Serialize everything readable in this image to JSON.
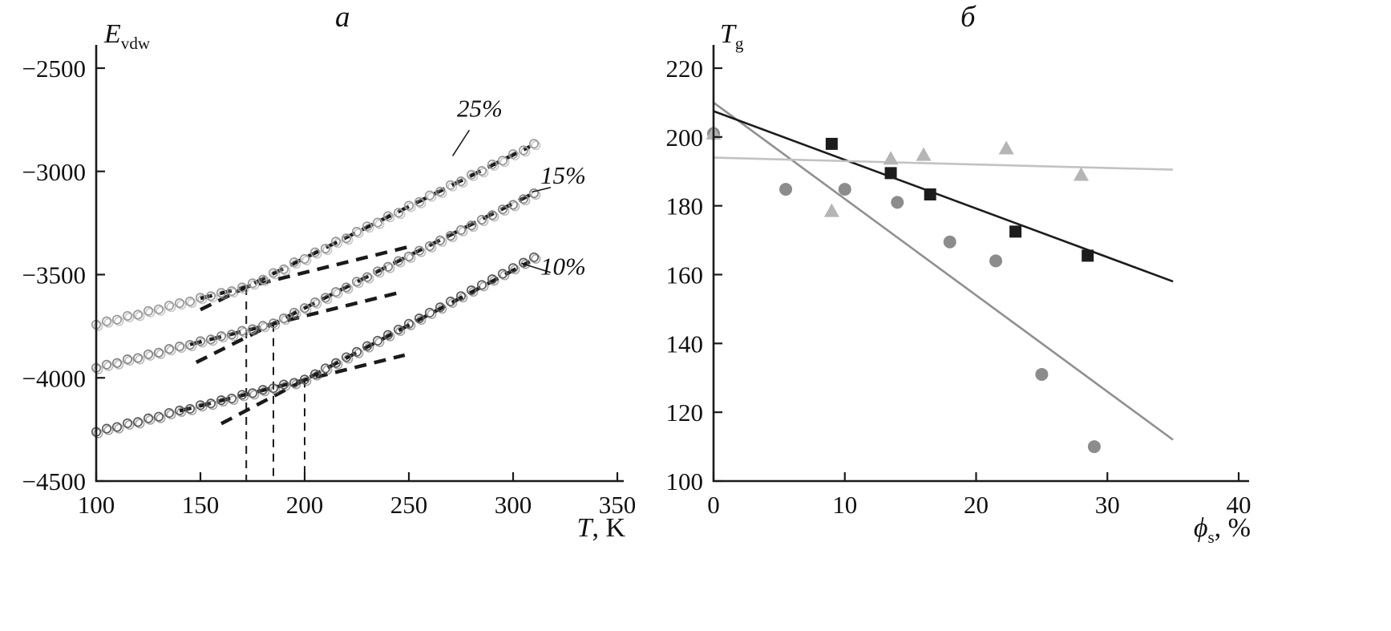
{
  "figure": {
    "background": "#ffffff",
    "panels": [
      {
        "title": "a",
        "y_axis_label": {
          "main": "E",
          "sub": "vdw"
        },
        "x_axis_label": {
          "main": "T",
          "rest": ", K"
        }
      },
      {
        "title": "б",
        "y_axis_label": {
          "main": "T",
          "sub": "g"
        },
        "x_axis_label": {
          "main": "ϕ",
          "sub": "s",
          "rest": ", %"
        }
      }
    ]
  },
  "chart_data": [
    {
      "type": "scatter",
      "panel": "a",
      "title": "a",
      "xlabel": "T, K",
      "ylabel": "E_vdw",
      "xlim": [
        100,
        350
      ],
      "ylim": [
        -4500,
        -2500
      ],
      "grid": false,
      "x_ticks": {
        "values": [
          100,
          150,
          200,
          250,
          300,
          350
        ],
        "labels": [
          "100",
          "150",
          "200",
          "250",
          "300",
          "350"
        ]
      },
      "y_ticks": {
        "values": [
          -2500,
          -3000,
          -3500,
          -4000,
          -4500
        ],
        "labels": [
          "−2500",
          "−3000",
          "−3500",
          "−4000",
          "−4500"
        ]
      },
      "x_start": 100,
      "x_step": 5,
      "series": [
        {
          "name": "25%",
          "marker": "open-circle",
          "color": "#9a9a9a",
          "values": [
            -3742,
            -3726,
            -3718,
            -3700,
            -3694,
            -3676,
            -3668,
            -3650,
            -3638,
            -3630,
            -3612,
            -3604,
            -3588,
            -3580,
            -3562,
            -3542,
            -3524,
            -3492,
            -3474,
            -3440,
            -3424,
            -3392,
            -3374,
            -3340,
            -3324,
            -3292,
            -3266,
            -3248,
            -3216,
            -3200,
            -3166,
            -3148,
            -3116,
            -3098,
            -3066,
            -3048,
            -3016,
            -2998,
            -2966,
            -2948,
            -2916,
            -2898,
            -2866
          ]
        },
        {
          "name": "15%",
          "marker": "open-circle",
          "color": "#868686",
          "values": [
            -3952,
            -3936,
            -3928,
            -3910,
            -3904,
            -3886,
            -3878,
            -3860,
            -3848,
            -3840,
            -3822,
            -3814,
            -3798,
            -3790,
            -3772,
            -3764,
            -3748,
            -3736,
            -3712,
            -3684,
            -3662,
            -3634,
            -3612,
            -3584,
            -3562,
            -3534,
            -3512,
            -3484,
            -3462,
            -3434,
            -3412,
            -3384,
            -3362,
            -3334,
            -3312,
            -3284,
            -3262,
            -3234,
            -3212,
            -3184,
            -3162,
            -3134,
            -3106
          ]
        },
        {
          "name": "10%",
          "marker": "open-circle",
          "color": "#5c5c5c",
          "values": [
            -4262,
            -4246,
            -4238,
            -4220,
            -4214,
            -4196,
            -4188,
            -4170,
            -4158,
            -4150,
            -4132,
            -4124,
            -4108,
            -4100,
            -4082,
            -4074,
            -4058,
            -4050,
            -4032,
            -4024,
            -4008,
            -3982,
            -3954,
            -3928,
            -3900,
            -3874,
            -3846,
            -3820,
            -3792,
            -3766,
            -3738,
            -3712,
            -3684,
            -3658,
            -3630,
            -3604,
            -3576,
            -3550,
            -3522,
            -3496,
            -3468,
            -3442,
            -3416
          ]
        }
      ],
      "fit_lines": [
        {
          "series": "25%",
          "dashed": true,
          "color": "#1a1a1a",
          "from": [
            150,
            -3670
          ],
          "to": [
            308,
            -2880
          ]
        },
        {
          "series": "25%",
          "dashed": true,
          "color": "#1a1a1a",
          "from": [
            150,
            -3615
          ],
          "to": [
            250,
            -3365
          ]
        },
        {
          "series": "15%",
          "dashed": true,
          "color": "#1a1a1a",
          "from": [
            148,
            -3925
          ],
          "to": [
            308,
            -3115
          ]
        },
        {
          "series": "15%",
          "dashed": true,
          "color": "#1a1a1a",
          "from": [
            145,
            -3838
          ],
          "to": [
            245,
            -3588
          ]
        },
        {
          "series": "10%",
          "dashed": true,
          "color": "#1a1a1a",
          "from": [
            160,
            -4222
          ],
          "to": [
            308,
            -3437
          ]
        },
        {
          "series": "10%",
          "dashed": true,
          "color": "#1a1a1a",
          "from": [
            140,
            -4160
          ],
          "to": [
            248,
            -3890
          ]
        }
      ],
      "transition_lines": [
        {
          "x": 172,
          "y_top": -3560
        },
        {
          "x": 185,
          "y_top": -3738
        },
        {
          "x": 200,
          "y_top": -4008
        }
      ],
      "annotations": [
        {
          "text": "25%",
          "x": 284,
          "y": -2735,
          "leader": {
            "from": [
              279,
              -2800
            ],
            "to": [
              271,
              -2925
            ]
          }
        },
        {
          "text": "15%",
          "x": 324,
          "y": -3060,
          "leader": {
            "from": [
              318,
              -3078
            ],
            "to": [
              309,
              -3100
            ]
          }
        },
        {
          "text": "10%",
          "x": 324,
          "y": -3500,
          "leader": {
            "from": [
              318,
              -3490
            ],
            "to": [
              304,
              -3445
            ]
          }
        }
      ]
    },
    {
      "type": "scatter",
      "panel": "б",
      "title": "б",
      "xlabel": "ϕs, %",
      "ylabel": "Tg",
      "xlim": [
        0,
        40
      ],
      "ylim": [
        100,
        220
      ],
      "grid": false,
      "x_ticks": {
        "values": [
          0,
          10,
          20,
          30,
          40
        ],
        "labels": [
          "0",
          "10",
          "20",
          "30",
          "40"
        ]
      },
      "y_ticks": {
        "values": [
          100,
          120,
          140,
          160,
          180,
          200,
          220
        ],
        "labels": [
          "100",
          "120",
          "140",
          "160",
          "180",
          "200",
          "220"
        ]
      },
      "series": [
        {
          "name": "circles",
          "marker": "circle",
          "color": "#8c8c8c",
          "points": [
            [
              0,
              201
            ],
            [
              5.5,
              184.8
            ],
            [
              10,
              184.8
            ],
            [
              14,
              181
            ],
            [
              18,
              169.5
            ],
            [
              21.5,
              164
            ],
            [
              25,
              131
            ],
            [
              29,
              110
            ]
          ]
        },
        {
          "name": "triangles",
          "marker": "triangle",
          "color": "#b5b5b5",
          "points": [
            [
              0,
              201
            ],
            [
              9,
              178.5
            ],
            [
              13.5,
              193.7
            ],
            [
              16,
              194.8
            ],
            [
              22.3,
              196.7
            ],
            [
              28,
              189
            ]
          ]
        },
        {
          "name": "squares",
          "marker": "square",
          "color": "#1c1c1c",
          "points": [
            [
              9,
              198
            ],
            [
              13.5,
              189.5
            ],
            [
              16.5,
              183.3
            ],
            [
              23,
              172.5
            ],
            [
              28.5,
              165.5
            ]
          ]
        }
      ],
      "fit_lines": [
        {
          "series": "circles",
          "dashed": false,
          "color": "#909090",
          "from": [
            0,
            210
          ],
          "to": [
            35,
            112
          ]
        },
        {
          "series": "squares",
          "dashed": false,
          "color": "#1c1c1c",
          "from": [
            0,
            207.5
          ],
          "to": [
            35,
            158
          ]
        },
        {
          "series": "triangles",
          "dashed": false,
          "color": "#c2c2c2",
          "from": [
            0,
            194
          ],
          "to": [
            35,
            190.5
          ]
        }
      ]
    }
  ]
}
